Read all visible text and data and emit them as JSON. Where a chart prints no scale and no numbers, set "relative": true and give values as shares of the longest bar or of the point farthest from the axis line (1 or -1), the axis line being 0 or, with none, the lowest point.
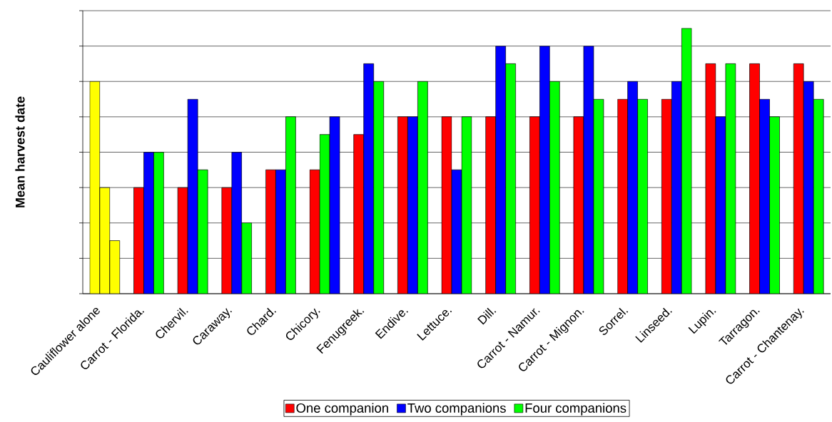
{
  "chart_data": {
    "type": "bar",
    "ylabel": "Mean harvest date",
    "relative": true,
    "categories": [
      "Cauliflower alone",
      "Carrot - Florida.",
      "Chervil.",
      "Caraway.",
      "Chard.",
      "Chicory.",
      "Fenugreek.",
      "Endive.",
      "Lettuce.",
      "Dill.",
      "Carrot - Namur.",
      "Carrot - Mignon.",
      "Sorrel.",
      "Linseed.",
      "Lupin.",
      "Tarragon.",
      "Carrot - Chantenay."
    ],
    "series": [
      {
        "name": "One companion",
        "color": "#ff0000",
        "colors": [
          "#ffff00",
          "#ff0000",
          "#ff0000",
          "#ff0000",
          "#ff0000",
          "#ff0000",
          "#ff0000",
          "#ff0000",
          "#ff0000",
          "#ff0000",
          "#ff0000",
          "#ff0000",
          "#ff0000",
          "#ff0000",
          "#ff0000",
          "#ff0000",
          "#ff0000"
        ],
        "values": [
          0.8,
          0.4,
          0.4,
          0.4,
          0.467,
          0.467,
          0.6,
          0.667,
          0.667,
          0.667,
          0.667,
          0.667,
          0.733,
          0.733,
          0.867,
          0.867,
          0.867
        ]
      },
      {
        "name": "Two companions",
        "color": "#0000ff",
        "colors": [
          "#ffff00",
          "#0000ff",
          "#0000ff",
          "#0000ff",
          "#0000ff",
          "#00ff00",
          "#0000ff",
          "#0000ff",
          "#0000ff",
          "#0000ff",
          "#0000ff",
          "#0000ff",
          "#0000ff",
          "#0000ff",
          "#0000ff",
          "#0000ff",
          "#0000ff"
        ],
        "values": [
          0.4,
          0.533,
          0.733,
          0.533,
          0.467,
          0.6,
          0.867,
          0.667,
          0.467,
          0.933,
          0.933,
          0.933,
          0.8,
          0.8,
          0.667,
          0.733,
          0.8
        ]
      },
      {
        "name": "Four companions",
        "color": "#00ff00",
        "colors": [
          "#ffff00",
          "#00ff00",
          "#00ff00",
          "#00ff00",
          "#00ff00",
          "#0000ff",
          "#00ff00",
          "#00ff00",
          "#00ff00",
          "#00ff00",
          "#00ff00",
          "#00ff00",
          "#00ff00",
          "#00ff00",
          "#00ff00",
          "#00ff00",
          "#00ff00"
        ],
        "values": [
          0.2,
          0.533,
          0.467,
          0.267,
          0.667,
          0.667,
          0.8,
          0.8,
          0.667,
          0.867,
          0.8,
          0.733,
          0.733,
          1,
          0.867,
          0.667,
          0.733
        ]
      }
    ],
    "grid": "y",
    "legend": "bottom"
  }
}
